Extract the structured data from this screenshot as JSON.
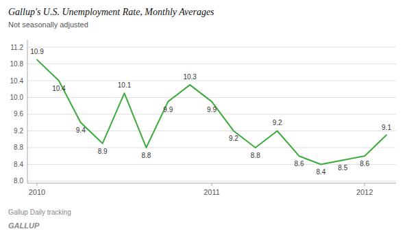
{
  "chart_data": {
    "type": "line",
    "title": "Gallup's U.S. Unemployment Rate, Monthly Averages",
    "subtitle": "Not seasonally adjusted",
    "annotations": [
      "Gallup Daily tracking",
      "GALLUP"
    ],
    "categories": [
      "2010",
      null,
      null,
      null,
      null,
      null,
      null,
      null,
      "2011",
      null,
      null,
      null,
      null,
      null,
      null,
      "2012",
      null
    ],
    "values": [
      10.9,
      10.4,
      9.4,
      8.9,
      10.1,
      8.8,
      9.9,
      10.3,
      9.9,
      9.2,
      8.8,
      9.2,
      8.6,
      8.4,
      8.5,
      8.6,
      9.1
    ],
    "color": "#3aaa3a",
    "ylim": [
      7.95,
      11.38
    ],
    "yticks": [
      {
        "value": 8.0,
        "label": "8.0"
      },
      8.4,
      8.8,
      9.2,
      9.6,
      {
        "value": 10.0,
        "label": "10.0"
      },
      10.4,
      10.8,
      11.2
    ],
    "grid": true,
    "data_labels": true
  }
}
